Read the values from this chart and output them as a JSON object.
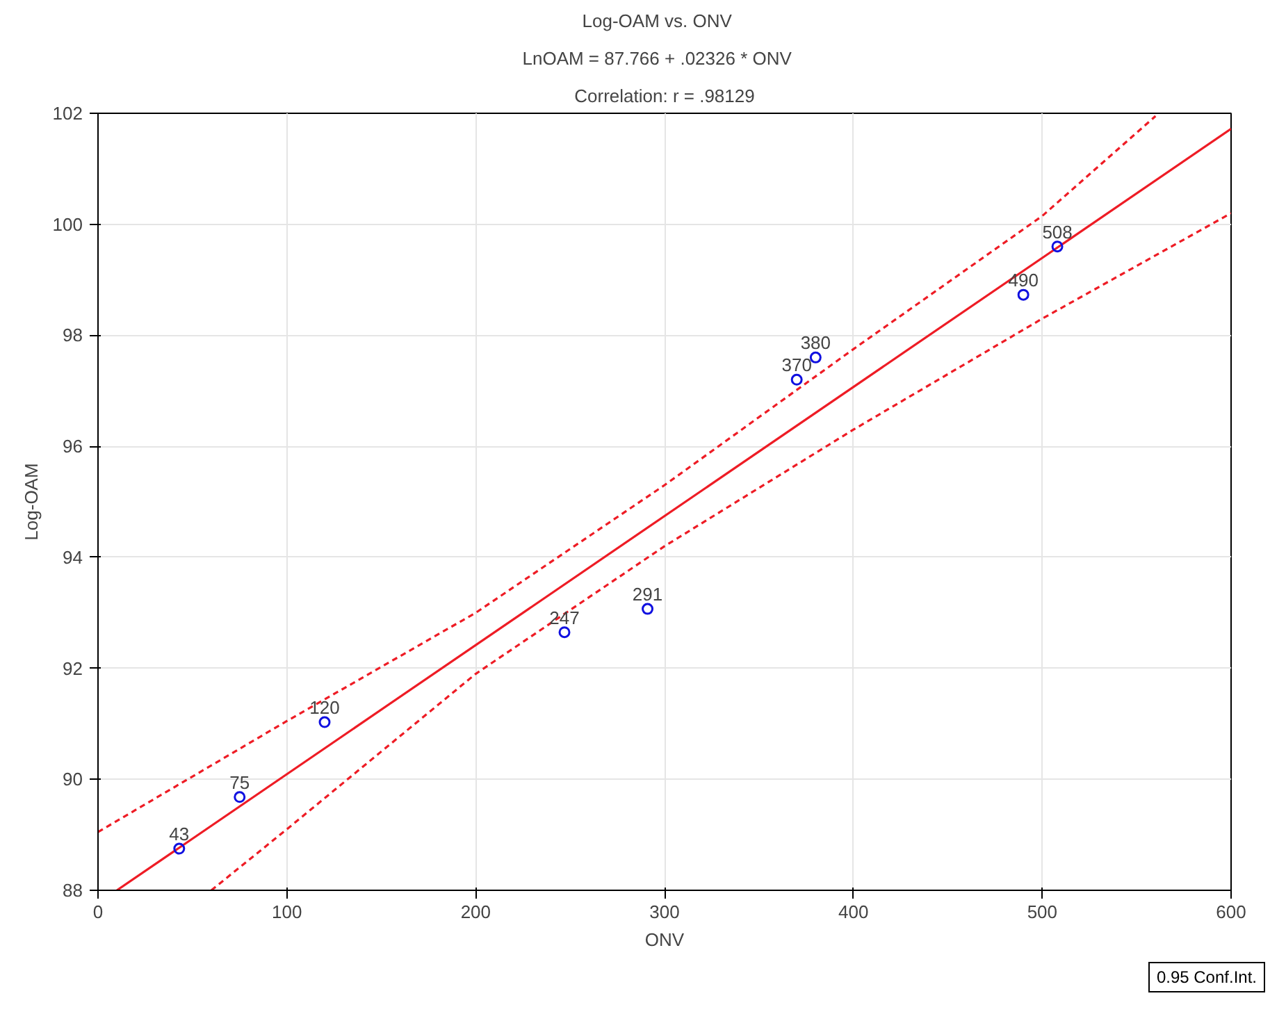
{
  "chart_data": {
    "type": "scatter",
    "title": "Log-OAM    vs. ONV",
    "subtitle": "LnOAM    = 87.766 + .02326 * ONV",
    "annotations": [
      "Correlation: r = .98129",
      "0.95 Conf.Int.",
      {
        "text": "43",
        "x": 43,
        "y": 88.75
      },
      {
        "text": "75",
        "x": 75,
        "y": 89.68
      },
      {
        "text": "120",
        "x": 120,
        "y": 91.03
      },
      {
        "text": "247",
        "x": 247,
        "y": 92.65
      },
      {
        "text": "291",
        "x": 291,
        "y": 93.07
      },
      {
        "text": "370",
        "x": 370,
        "y": 97.2
      },
      {
        "text": "380",
        "x": 380,
        "y": 97.6
      },
      {
        "text": "490",
        "x": 490,
        "y": 98.73
      },
      {
        "text": "508",
        "x": 508,
        "y": 99.6
      }
    ],
    "xlabel": "ONV",
    "ylabel": "Log-OAM",
    "xlim": [
      0,
      600
    ],
    "xticks": [
      0,
      100,
      200,
      300,
      400,
      500,
      600
    ],
    "ylim": [
      88,
      102
    ],
    "yticks": [
      88,
      90,
      92,
      94,
      96,
      98,
      100,
      102
    ],
    "grid": true,
    "series": [
      {
        "type": "line",
        "color": "#ee1c25",
        "line_style": "solid",
        "x": [
          10,
          600
        ],
        "values": [
          88.0,
          101.72
        ]
      },
      {
        "type": "line",
        "color": "#ee1c25",
        "line_style": "dashed",
        "x": [
          0,
          100,
          200,
          300,
          400,
          500,
          560
        ],
        "values": [
          89.05,
          91.05,
          93.0,
          95.3,
          97.75,
          100.15,
          101.95
        ]
      },
      {
        "type": "line",
        "color": "#ee1c25",
        "line_style": "dashed",
        "x": [
          60,
          100,
          200,
          300,
          400,
          500,
          600
        ],
        "values": [
          88.0,
          89.1,
          91.9,
          94.2,
          96.3,
          98.3,
          100.2
        ]
      },
      {
        "color": "#1010e0",
        "marker": "circle",
        "x": [
          43,
          75,
          120,
          247,
          291,
          370,
          380,
          490,
          508
        ],
        "values": [
          88.75,
          89.68,
          91.03,
          92.65,
          93.07,
          97.2,
          97.6,
          98.73,
          99.6
        ]
      }
    ]
  }
}
